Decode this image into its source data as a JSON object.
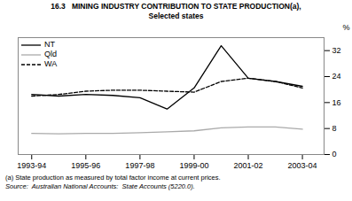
{
  "chart_data": {
    "type": "line",
    "title": "16.3   MINING INDUSTRY CONTRIBUTION TO STATE PRODUCTION(a),",
    "subtitle": "Selected states",
    "annotations": [
      "(a) State production as measured by total factor income at current prices.",
      "Source:  Australian National Accounts:  State Accounts (5220.0)."
    ],
    "x": [
      1993.5,
      1994.5,
      1995.5,
      1996.5,
      1997.5,
      1998.5,
      1999.5,
      2000.5,
      2001.5,
      2002.5,
      2003.5
    ],
    "series": [
      {
        "name": "NT",
        "color": "#000000",
        "line_style": "solid",
        "values": [
          18.5,
          18.0,
          18.5,
          18.2,
          17.5,
          14.0,
          20.5,
          33.5,
          23.5,
          22.5,
          21.0
        ]
      },
      {
        "name": "Qld",
        "color": "#aaaaaa",
        "line_style": "solid",
        "values": [
          6.5,
          6.4,
          6.5,
          6.5,
          6.7,
          7.0,
          7.3,
          8.2,
          8.5,
          8.5,
          7.8
        ]
      },
      {
        "name": "WA",
        "color": "#000000",
        "line_style": "dashed",
        "values": [
          18.0,
          18.5,
          19.5,
          19.8,
          19.8,
          19.5,
          19.2,
          22.5,
          23.5,
          22.5,
          20.5
        ]
      }
    ],
    "xlim": [
      1993.0,
      2004.3
    ],
    "xticks": [
      {
        "value": 1993.5,
        "label": "1993-94"
      },
      {
        "value": 1995.5,
        "label": "1995-96"
      },
      {
        "value": 1997.5,
        "label": "1997-98"
      },
      {
        "value": 1999.5,
        "label": "1999-00"
      },
      {
        "value": 2001.5,
        "label": "2001-02"
      },
      {
        "value": 2003.5,
        "label": "2003-04"
      }
    ],
    "ylabel": "%",
    "ylim": [
      0,
      36
    ],
    "yticks": [
      0,
      8,
      16,
      24,
      32
    ],
    "grid": false,
    "legend": "upper left"
  }
}
